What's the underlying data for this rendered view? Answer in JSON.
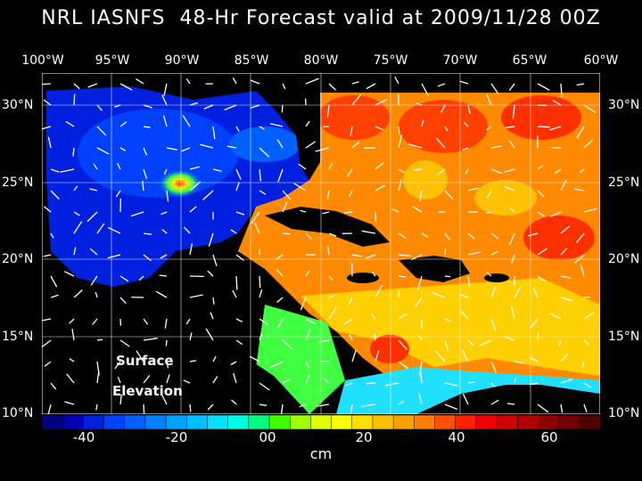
{
  "title": "NRL IASNFS  48-Hr Forecast valid at 2009/11/28 00Z",
  "lon_labels": [
    "100°W",
    "95°W",
    "90°W",
    "85°W",
    "80°W",
    "75°W",
    "70°W",
    "65°W",
    "60°W"
  ],
  "lat_labels": [
    "30°N",
    "25°N",
    "20°N",
    "15°N",
    "10°N"
  ],
  "legend_labels": [
    "-40",
    "-20",
    "00",
    "20",
    "40",
    "60"
  ],
  "units": "cm",
  "map_label_1": "Surface",
  "map_label_2": "Elevation",
  "colorbar_colors": [
    "#000080",
    "#0000b0",
    "#0020e0",
    "#0040ff",
    "#0060ff",
    "#0080ff",
    "#00a0ff",
    "#00c0ff",
    "#00e0ff",
    "#00ffe0",
    "#00ff80",
    "#40ff00",
    "#a0ff00",
    "#e0ff00",
    "#ffff00",
    "#ffe000",
    "#ffc000",
    "#ffa000",
    "#ff8000",
    "#ff5000",
    "#ff2000",
    "#f00000",
    "#d00000",
    "#b00000",
    "#900000",
    "#700000",
    "#500000"
  ]
}
